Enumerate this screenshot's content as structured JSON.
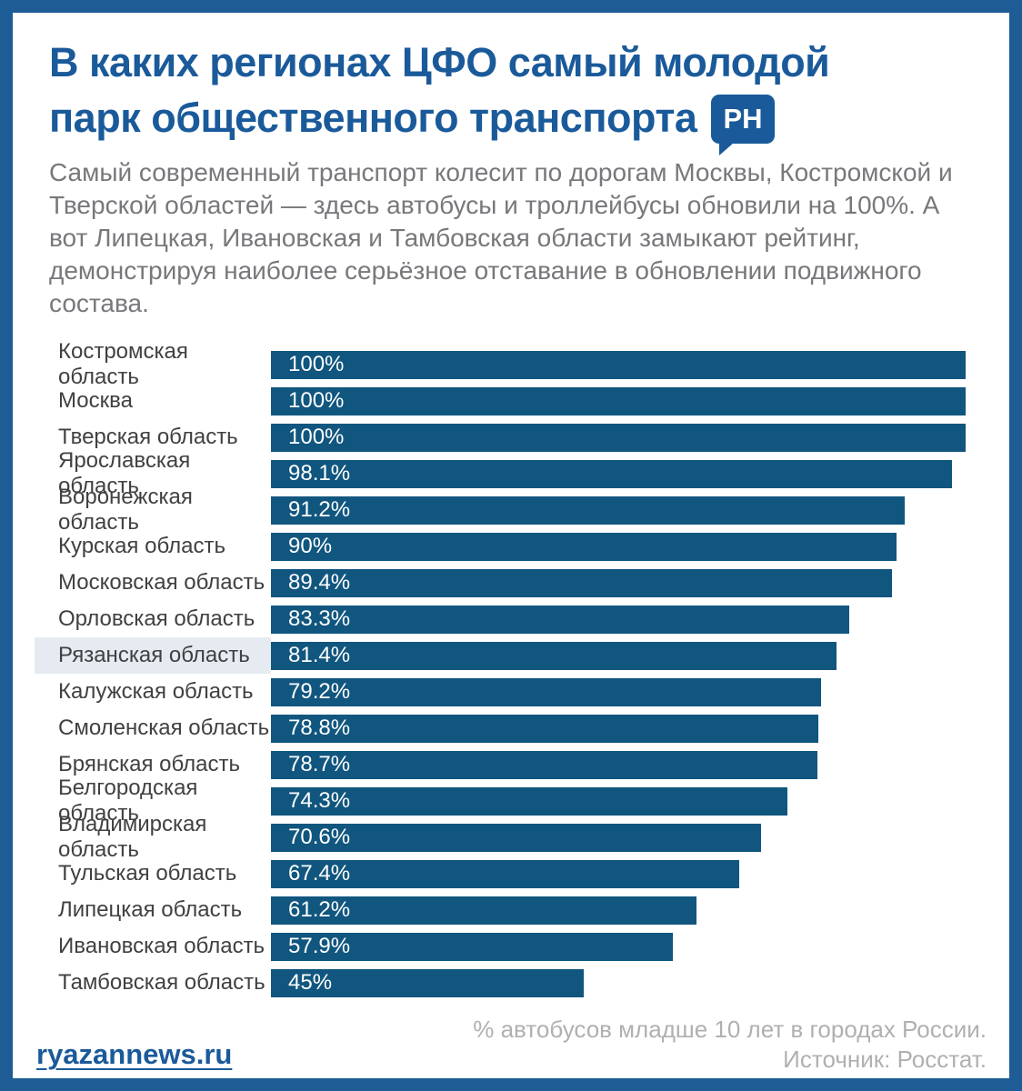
{
  "header": {
    "title_line1": "В каких регионах ЦФО самый молодой",
    "title_line2": "парк общественного транспорта",
    "logo_badge": "РН"
  },
  "intro": {
    "text": "Самый современный транспорт колесит по дорогам Москвы, Костромской и Тверской областей — здесь автобусы и троллейбусы обновили на 100%. А вот Липецкая, Ивановская и Тамбовская области замыкают рейтинг, демонстрируя наиболее серьёзное отставание в обновлении подвижного состава."
  },
  "chart_data": {
    "type": "bar",
    "orientation": "horizontal",
    "categories": [
      "Костромская область",
      "Москва",
      "Тверская область",
      "Ярославская область",
      "Воронежская область",
      "Курская область",
      "Московская область",
      "Орловская область",
      "Рязанская область",
      "Калужская область",
      "Смоленская область",
      "Брянская область",
      "Белгородская область",
      "Владимирская область",
      "Тульская область",
      "Липецкая область",
      "Ивановская область",
      "Тамбовская область"
    ],
    "values": [
      100,
      100,
      100,
      98.1,
      91.2,
      90,
      89.4,
      83.3,
      81.4,
      79.2,
      78.8,
      78.7,
      74.3,
      70.6,
      67.4,
      61.2,
      57.9,
      45
    ],
    "labels": [
      "100%",
      "100%",
      "100%",
      "98.1%",
      "91.2%",
      "90%",
      "89.4%",
      "83.3%",
      "81.4%",
      "79.2%",
      "78.8%",
      "78.7%",
      "74.3%",
      "70.6%",
      "67.4%",
      "61.2%",
      "57.9%",
      "45%"
    ],
    "highlighted_category": "Рязанская область",
    "xlim": [
      0,
      100
    ],
    "grid": false,
    "legend": false,
    "title": "",
    "xlabel": "",
    "ylabel": ""
  },
  "footer": {
    "site_link": "ryazannews.ru",
    "note_line1": "% автобусов младше 10 лет в городах России.",
    "note_line2": "Источник: Росстат."
  },
  "colors": {
    "frame": "#1E5C95",
    "title": "#1A5A9A",
    "badge_bg": "#1A5A9A",
    "intro_text": "#77787B",
    "region_label": "#414042",
    "bar": "#11567F",
    "bar_value_text": "#FFFFFF",
    "row_highlight_bg": "#E5EBF1",
    "footer_link": "#1A5A9A",
    "footer_note": "#AFB0B2",
    "background": "#FFFFFF"
  }
}
